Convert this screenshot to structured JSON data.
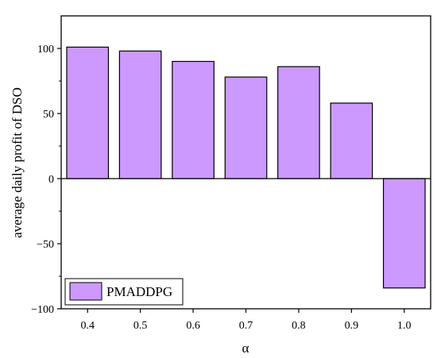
{
  "chart_data": {
    "type": "bar",
    "title": "",
    "xlabel": "α",
    "ylabel": "average daily profit of DSO",
    "categories": [
      "0.4",
      "0.5",
      "0.6",
      "0.7",
      "0.8",
      "0.9",
      "1.0"
    ],
    "series": [
      {
        "name": "PMADDPG",
        "values": [
          101,
          98,
          90,
          78,
          86,
          58,
          -84
        ],
        "color": "#cc99ff"
      }
    ],
    "ylim": [
      -100,
      125
    ],
    "yticks": [
      -100,
      -50,
      0,
      50,
      100
    ],
    "grid": false,
    "legend_position": "bottom-left",
    "zero_line": true
  }
}
